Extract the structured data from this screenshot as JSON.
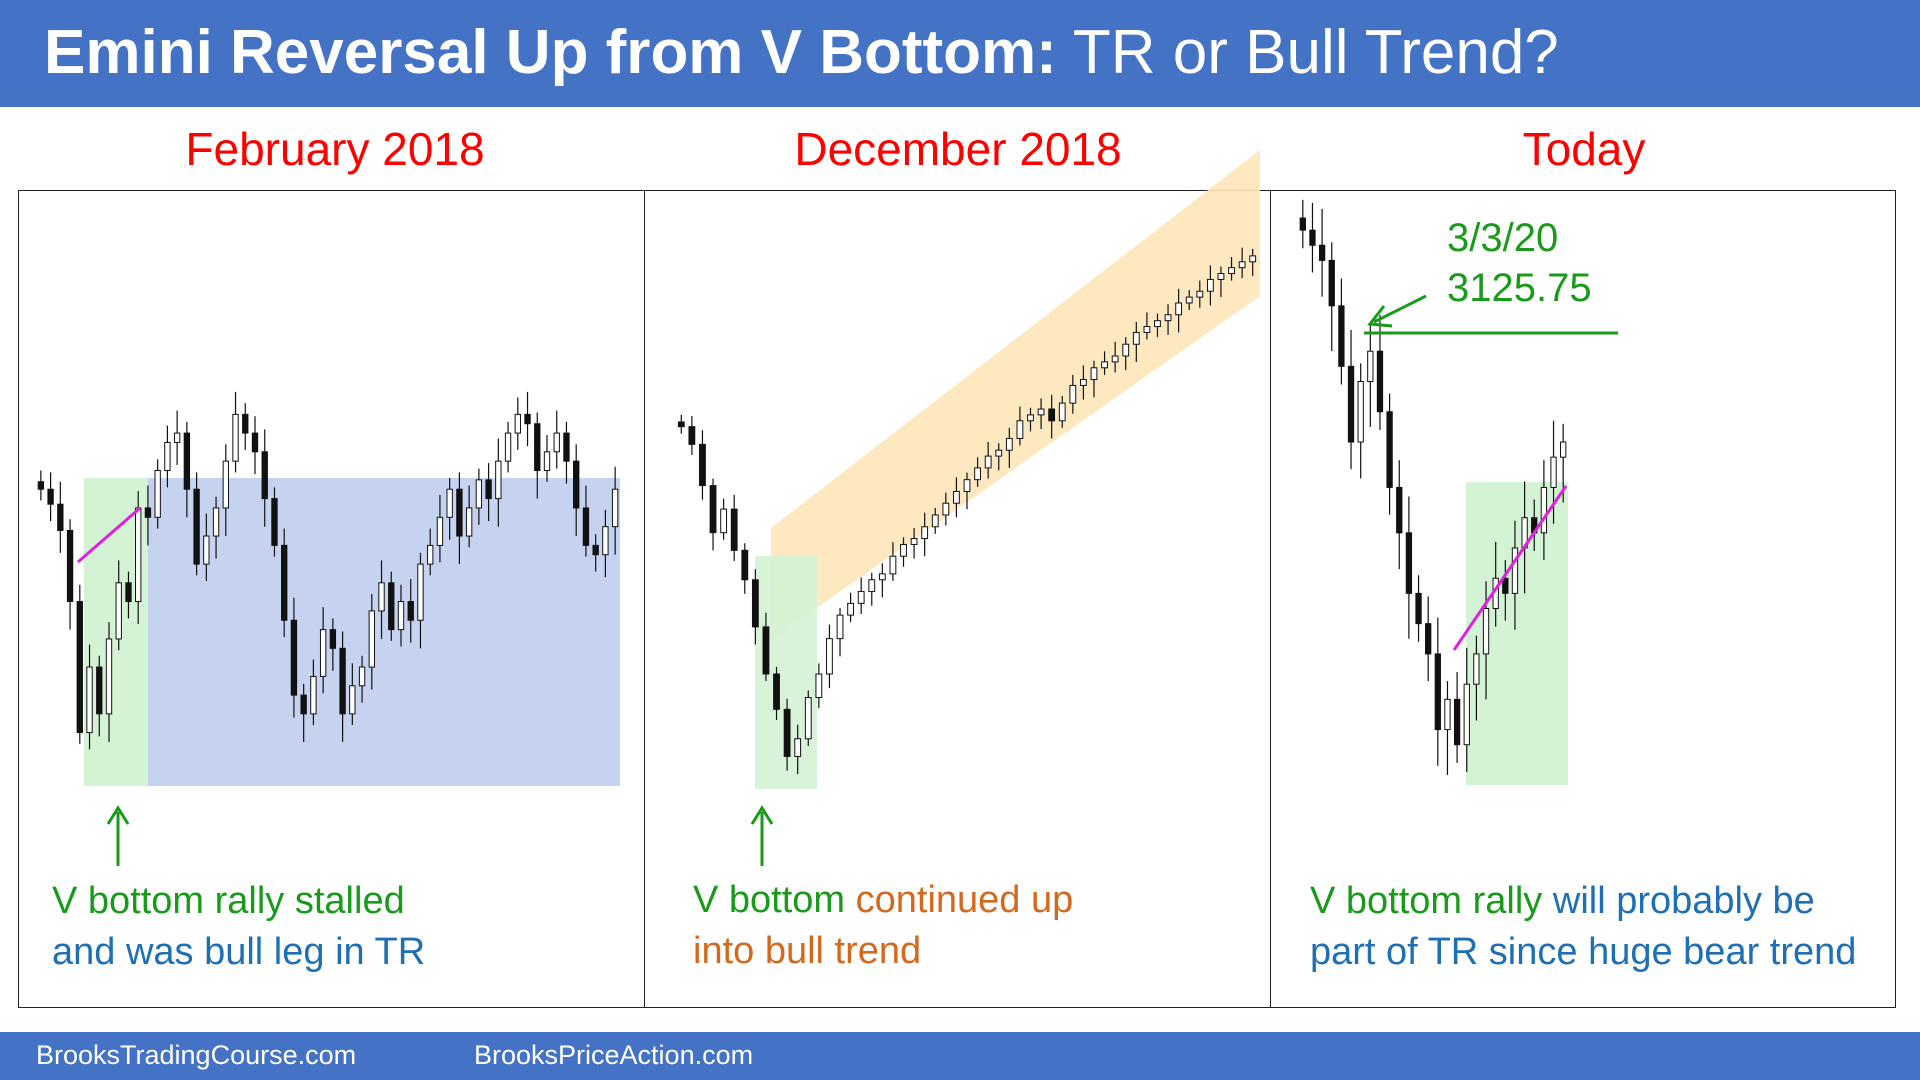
{
  "header": {
    "title_bold": "Emini Reversal Up from V Bottom:",
    "title_regular": " TR or Bull Trend?"
  },
  "panels": [
    {
      "title": "February 2018"
    },
    {
      "title": "December 2018"
    },
    {
      "title": "Today"
    }
  ],
  "captions": {
    "p1_line1": "V bottom rally stalled",
    "p1_line2": "and was bull leg in TR",
    "p2_line1_green": "V bottom",
    "p2_line1_orange": " continued up",
    "p2_line2": "into bull trend",
    "p3_line1_green": "V bottom rally",
    "p3_line1_blue": " will probably be",
    "p3_line2": "part of TR since huge bear trend"
  },
  "annotation": {
    "date": "3/3/20",
    "price": "3125.75"
  },
  "footer": {
    "left": "BrooksTradingCourse.com",
    "right": "BrooksPriceAction.com"
  },
  "colors": {
    "header_bg": "#4472c4",
    "panel_title": "#ff0000",
    "green_text": "#1a9a1a",
    "blue_text": "#1f6fb4",
    "orange_text": "#d2691e",
    "trading_range_box": "#c5d3f0",
    "v_bottom_box": "#d4f2d4",
    "bull_channel": "#fde6b8",
    "trend_line": "#e020e0"
  },
  "chart_data": [
    {
      "type": "candlestick",
      "title": "February 2018",
      "close": [
        1000,
        992,
        978,
        940,
        870,
        905,
        880,
        920,
        950,
        940,
        990,
        985,
        1010,
        1025,
        1030,
        1000,
        960,
        975,
        990,
        1015,
        1040,
        1030,
        1020,
        995,
        970,
        930,
        890,
        880,
        900,
        925,
        915,
        880,
        895,
        905,
        935,
        950,
        925,
        940,
        930,
        960,
        970,
        985,
        1000,
        975,
        990,
        1005,
        995,
        1015,
        1030,
        1040,
        1035,
        1010,
        1020,
        1030,
        1015,
        990,
        970,
        965,
        980,
        1000
      ],
      "note": "V bottom rally stalled inside a trading range"
    },
    {
      "type": "candlestick",
      "title": "December 2018",
      "close": [
        1000,
        985,
        950,
        910,
        930,
        895,
        870,
        830,
        790,
        760,
        720,
        735,
        770,
        790,
        820,
        840,
        850,
        860,
        870,
        875,
        890,
        900,
        905,
        915,
        925,
        935,
        945,
        955,
        965,
        975,
        980,
        990,
        1005,
        1010,
        1015,
        1005,
        1020,
        1035,
        1040,
        1050,
        1055,
        1060,
        1070,
        1080,
        1085,
        1090,
        1095,
        1105,
        1110,
        1115,
        1125,
        1130,
        1135,
        1140,
        1145
      ],
      "note": "V bottom continued up into a bull channel"
    },
    {
      "type": "candlestick",
      "title": "Today",
      "close": [
        1000,
        995,
        990,
        975,
        955,
        930,
        950,
        960,
        940,
        915,
        900,
        880,
        870,
        860,
        835,
        845,
        830,
        850,
        860,
        875,
        885,
        880,
        895,
        905,
        900,
        915,
        925,
        930
      ],
      "resistance": {
        "label": "3/3/20",
        "value": 3125.75
      }
    }
  ]
}
